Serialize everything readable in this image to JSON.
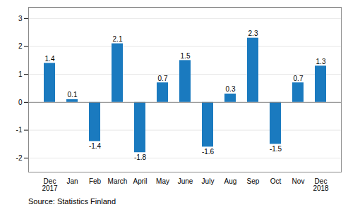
{
  "chart_data": {
    "type": "bar",
    "categories": [
      "Dec\n2017",
      "Jan",
      "Feb",
      "March",
      "April",
      "May",
      "June",
      "July",
      "Aug",
      "Sep",
      "Oct",
      "Nov",
      "Dec\n2018"
    ],
    "values": [
      1.4,
      0.1,
      -1.4,
      2.1,
      -1.8,
      0.7,
      1.5,
      -1.6,
      0.3,
      2.3,
      -1.5,
      0.7,
      1.3
    ],
    "color": "#1a7abf",
    "ylim": [
      -2.5,
      3.4
    ],
    "yticks": [
      -2,
      -1,
      0,
      1,
      2,
      3
    ],
    "grid": true,
    "data_labels": true,
    "caption": "Source: Statistics Finland"
  }
}
